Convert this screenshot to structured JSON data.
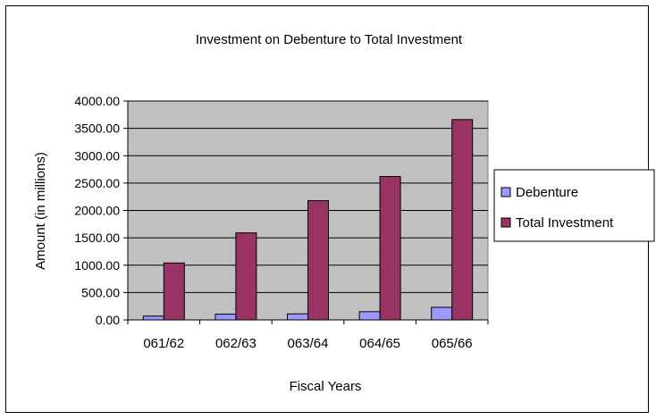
{
  "chart_data": {
    "type": "bar",
    "title": "Investment on Debenture to Total Investment",
    "xlabel": "Fiscal Years",
    "ylabel": "Amount (in millions)",
    "categories": [
      "061/62",
      "062/63",
      "063/64",
      "064/65",
      "065/66"
    ],
    "series": [
      {
        "name": "Debenture",
        "values": [
          70,
          105,
          110,
          150,
          230
        ],
        "color": "#9999ff"
      },
      {
        "name": "Total Investment",
        "values": [
          1040,
          1590,
          2180,
          2620,
          3660
        ],
        "color": "#993366"
      }
    ],
    "ylim": [
      0,
      4000
    ],
    "yticks": [
      "0.00",
      "500.00",
      "1000.00",
      "1500.00",
      "2000.00",
      "2500.00",
      "3000.00",
      "3500.00",
      "4000.00"
    ],
    "grid": true,
    "plot_background": "#c0c0c0",
    "legend": "right"
  }
}
